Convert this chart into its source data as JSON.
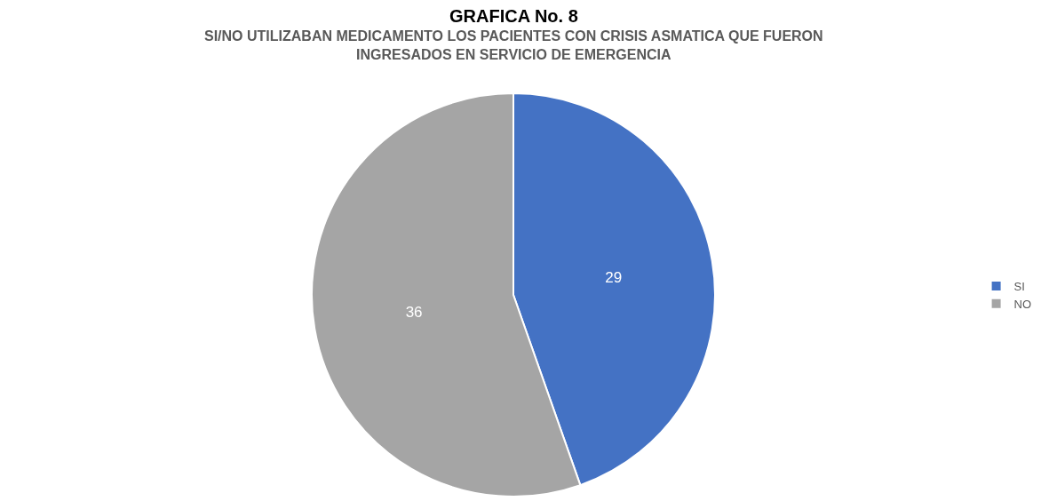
{
  "chart_data": {
    "type": "pie",
    "title": "GRAFICA No. 8",
    "subtitle": "SI/NO UTILIZABAN MEDICAMENTO LOS PACIENTES CON CRISIS ASMATICA QUE FUERON INGRESADOS EN SERVICIO DE EMERGENCIA",
    "categories": [
      "SI",
      "NO"
    ],
    "values": [
      29,
      36
    ],
    "colors": [
      "#4472c4",
      "#a5a5a5"
    ],
    "data_labels": true,
    "legend": "right"
  }
}
